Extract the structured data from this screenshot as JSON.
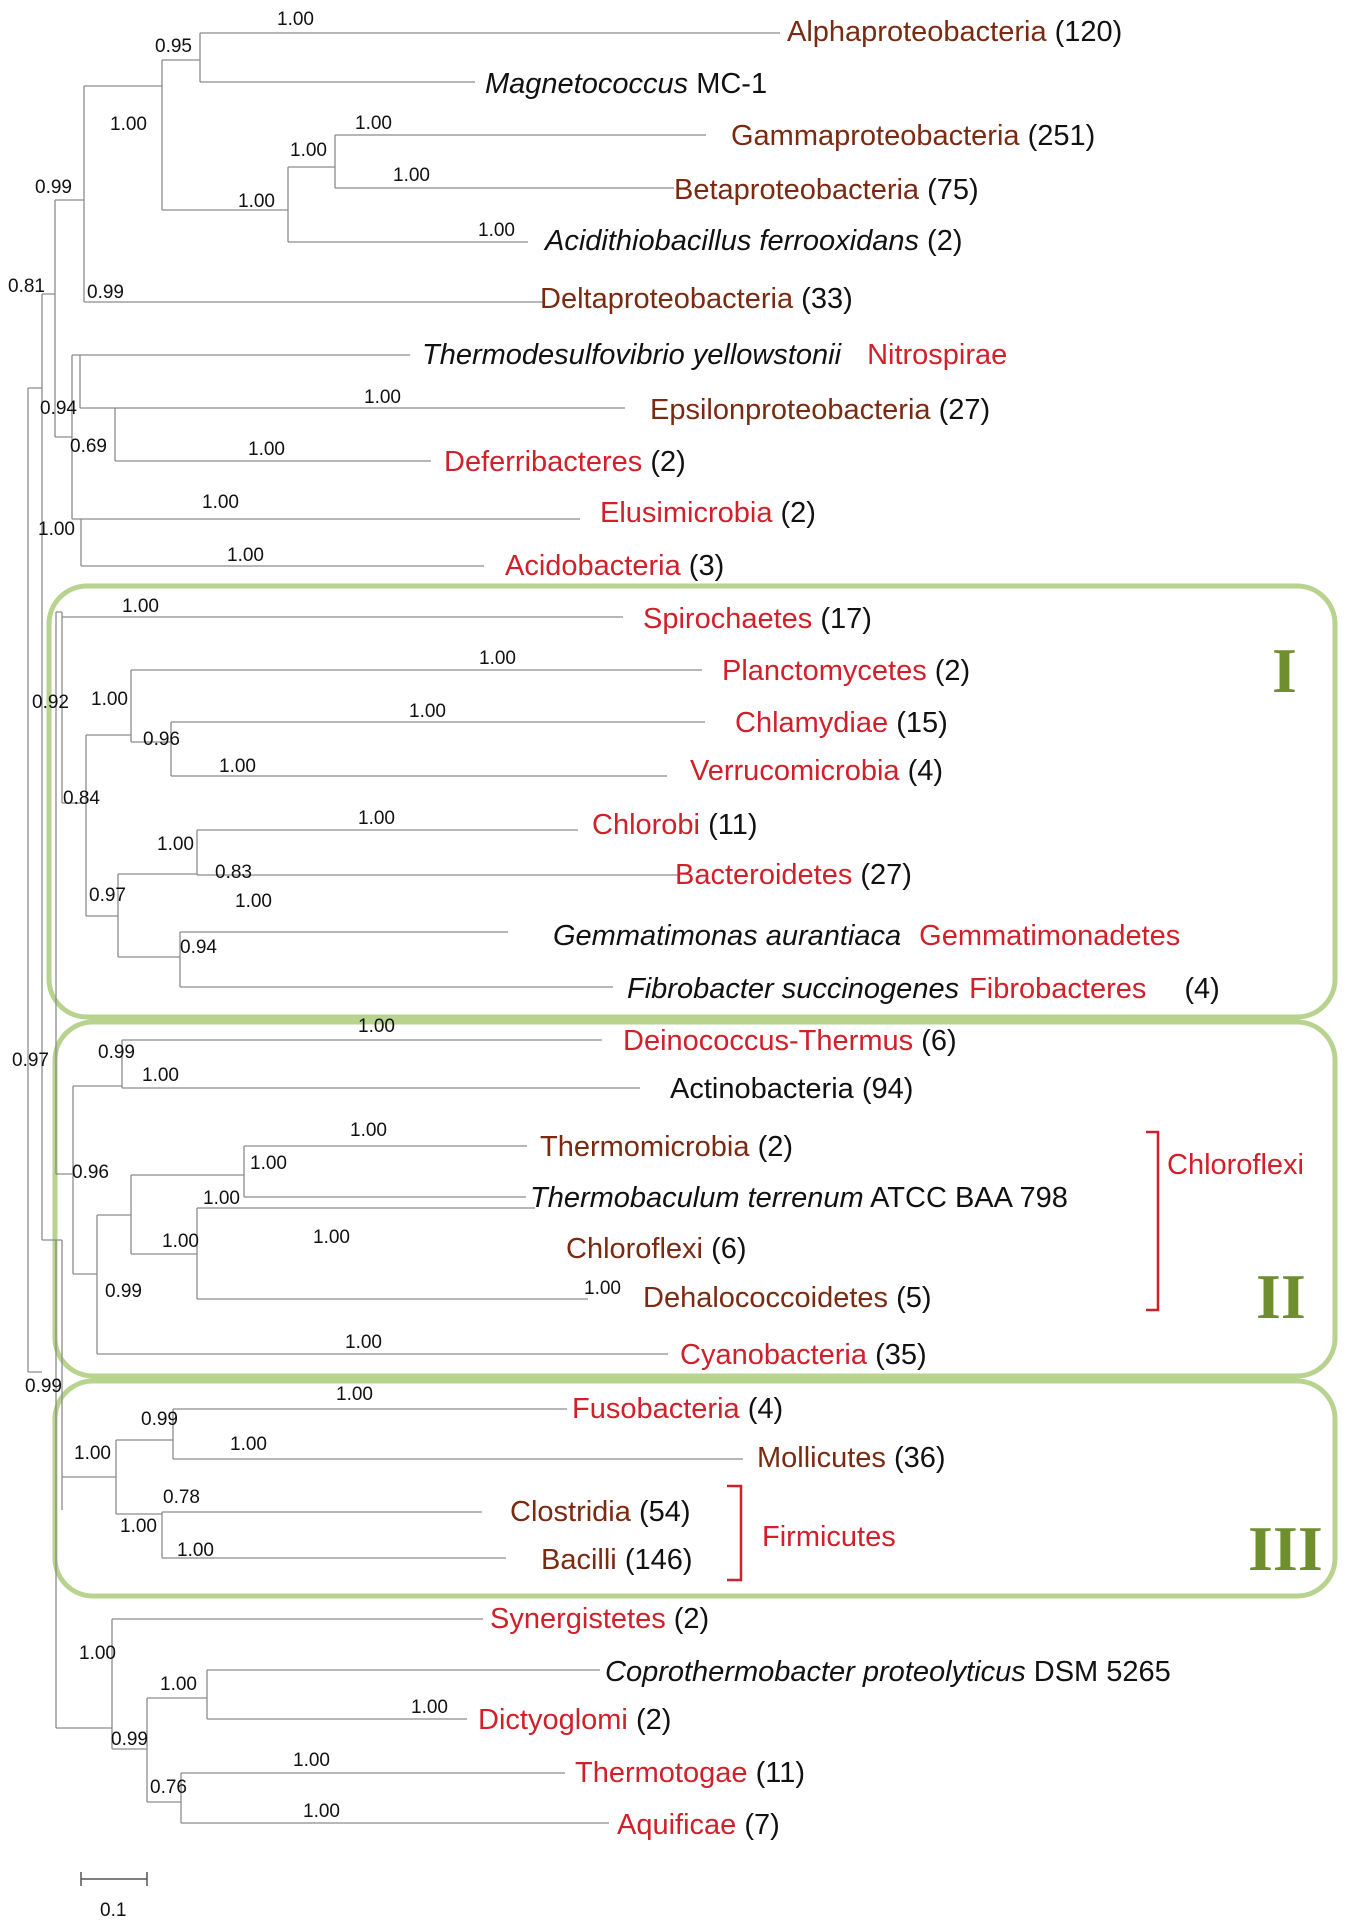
{
  "tips": {
    "alpha": {
      "name": "Alphaproteobacteria",
      "count": "(120)"
    },
    "magneto": {
      "name": "Magnetococcus",
      "suffix": "MC-1"
    },
    "gamma": {
      "name": "Gammaproteobacteria",
      "count": "(251)"
    },
    "beta": {
      "name": "Betaproteobacteria",
      "count": "(75)"
    },
    "acidithio": {
      "name": "Acidithiobacillus ferrooxidans",
      "count": "(2)"
    },
    "delta": {
      "name": "Deltaproteobacteria",
      "count": "(33)"
    },
    "thermodesulfo": {
      "name": "Thermodesulfovibrio yellowstonii",
      "group": "Nitrospirae"
    },
    "epsilon": {
      "name": "Epsilonproteobacteria",
      "count": "(27)"
    },
    "deferri": {
      "name": "Deferribacteres",
      "count": "(2)"
    },
    "elusi": {
      "name": "Elusimicrobia",
      "count": "(2)"
    },
    "acido": {
      "name": "Acidobacteria",
      "count": "(3)"
    },
    "spiro": {
      "name": "Spirochaetes",
      "count": "(17)"
    },
    "plancto": {
      "name": "Planctomycetes",
      "count": "(2)"
    },
    "chlamy": {
      "name": "Chlamydiae",
      "count": "(15)"
    },
    "verruco": {
      "name": "Verrucomicrobia",
      "count": "(4)"
    },
    "chlorobi": {
      "name": "Chlorobi",
      "count": "(11)"
    },
    "bactero": {
      "name": "Bacteroidetes",
      "count": "(27)"
    },
    "gemma": {
      "name": "Gemmatimonas aurantiaca",
      "group": "Gemmatimonadetes"
    },
    "fibro": {
      "name": "Fibrobacter succinogenes",
      "group": "Fibrobacteres",
      "count": "(4)"
    },
    "deino": {
      "name": "Deinococcus-Thermus",
      "count": "(6)"
    },
    "actino": {
      "name": "Actinobacteria",
      "count": "(94)"
    },
    "thermomicro": {
      "name": "Thermomicrobia",
      "count": "(2)"
    },
    "thermobac": {
      "name": "Thermobaculum terrenum",
      "suffix": "ATCC BAA 798"
    },
    "chloroflexi": {
      "name": "Chloroflexi",
      "count": "(6)"
    },
    "dehalo": {
      "name": "Dehalococcoidetes",
      "count": "(5)"
    },
    "cyano": {
      "name": "Cyanobacteria",
      "count": "(35)"
    },
    "fuso": {
      "name": "Fusobacteria",
      "count": "(4)"
    },
    "molli": {
      "name": "Mollicutes",
      "count": "(36)"
    },
    "clostri": {
      "name": "Clostridia",
      "count": "(54)"
    },
    "bacilli": {
      "name": "Bacilli",
      "count": "(146)"
    },
    "synergi": {
      "name": "Synergistetes",
      "count": "(2)"
    },
    "copro": {
      "name": "Coprothermobacter proteolyticus",
      "suffix": "DSM 5265"
    },
    "dictyo": {
      "name": "Dictyoglomi",
      "count": "(2)"
    },
    "thermotogae": {
      "name": "Thermotogae",
      "count": "(11)"
    },
    "aquificae": {
      "name": "Aquificae",
      "count": "(7)"
    }
  },
  "brackets": {
    "chloroflexi": "Chloroflexi",
    "firmicutes": "Firmicutes"
  },
  "clusters": {
    "one": "I",
    "two": "II",
    "three": "III"
  },
  "scale_bar": "0.1",
  "support": {
    "a": "1.00",
    "b": "0.95",
    "c": "1.00",
    "d": "1.00",
    "e": "1.00",
    "f": "1.00",
    "g": "1.00",
    "h": "1.00",
    "i": "0.99",
    "j": "0.99",
    "k": "0.81",
    "l": "1.00",
    "m": "0.94",
    "n": "0.69",
    "o": "1.00",
    "p": "1.00",
    "q": "1.00",
    "r": "1.00",
    "s": "1.00",
    "t": "0.92",
    "u": "1.00",
    "v": "1.00",
    "w": "0.96",
    "x": "1.00",
    "y": "0.84",
    "z": "1.00",
    "aa": "1.00",
    "ab": "1.00",
    "ac": "0.97",
    "ad": "0.83",
    "ae": "1.00",
    "af": "0.94",
    "ag": "1.00",
    "ah": "0.97",
    "ai": "1.00",
    "aj": "0.99",
    "ak": "1.00",
    "al": "1.00",
    "am": "1.00",
    "an": "1.00",
    "ao": "0.96",
    "ap": "0.99",
    "aq": "1.00",
    "ar": "1.00",
    "as": "1.00",
    "at": "0.99",
    "au": "1.00",
    "av": "1.00",
    "aw": "0.78",
    "ax": "1.00",
    "ay": "1.00",
    "az": "0.99",
    "ba": "1.00",
    "bb": "1.00",
    "bc": "1.00",
    "bd": "1.00",
    "be": "0.76",
    "bf": "1.00"
  },
  "colors": {
    "red_taxon": "#d0202a",
    "brown_taxon": "#7a2a10",
    "cluster_box": "#b7d38e",
    "cluster_label": "#6f8f2f"
  }
}
